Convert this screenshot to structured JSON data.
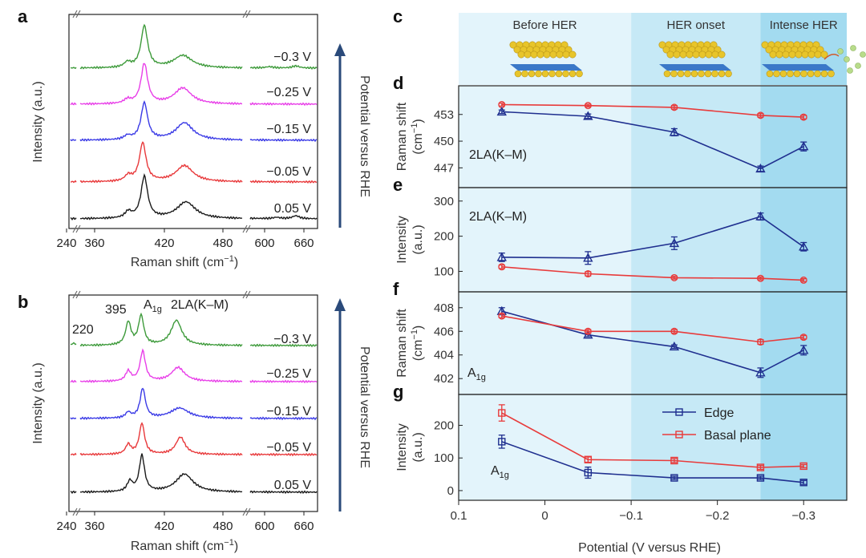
{
  "colors": {
    "black": "#1a1a1a",
    "red": "#e8383a",
    "blue": "#3a3ae6",
    "magenta": "#e83ee8",
    "green": "#3d9a3a",
    "edge": "#1f2f8f",
    "basal": "#e83b3b",
    "arrow": "#2a4a7a",
    "region1": "#e3f4fb",
    "region2": "#c6e9f6",
    "region3": "#a3dbf0"
  },
  "regions": {
    "labels": [
      "Before HER",
      "HER onset",
      "Intense HER"
    ],
    "bounds": [
      [
        0.1,
        -0.1
      ],
      [
        -0.1,
        -0.25
      ],
      [
        -0.25,
        -0.35
      ]
    ]
  },
  "spectra": {
    "panels": [
      {
        "label": "a",
        "potentials": [
          "−0.3 V",
          "−0.25 V",
          "−0.15 V",
          "−0.05 V",
          "0.05 V"
        ]
      },
      {
        "label": "b",
        "potentials": [
          "−0.3 V",
          "−0.25 V",
          "−0.15 V",
          "−0.05 V",
          "0.05 V"
        ],
        "peak_labels": [
          "220",
          "395",
          "A",
          "1g",
          "2LA(K–M)"
        ]
      }
    ],
    "ylabel": "Intensity (a.u.)",
    "xlabel": "Raman shift (cm",
    "xlabel_sup": "−1",
    "xlabel_end": ")",
    "ticks": [
      "240",
      "360",
      "420",
      "480",
      "600",
      "660"
    ],
    "arrow_label": "Potential versus RHE"
  },
  "chart_data": [
    {
      "type": "line",
      "panel": "d",
      "annotation": "2LA(K–M)",
      "ylabel": "Raman shift",
      "ylabel2": "(cm",
      "ylabel2_sup": "−1",
      "ylabel2_end": ")",
      "x": [
        0.05,
        -0.05,
        -0.15,
        -0.25,
        -0.3
      ],
      "ylim": [
        445.5,
        455.5
      ],
      "yticks": [
        447,
        450,
        453
      ],
      "series": [
        {
          "key": "basal",
          "marker": "circle",
          "values": [
            454.1,
            454.0,
            453.8,
            452.9,
            452.7
          ],
          "err": [
            0.15,
            0.15,
            0.2,
            0.2,
            0.2
          ]
        },
        {
          "key": "edge",
          "marker": "triangle",
          "values": [
            453.3,
            452.8,
            451.0,
            446.9,
            449.4
          ],
          "err": [
            0.2,
            0.25,
            0.4,
            0.3,
            0.5
          ]
        }
      ]
    },
    {
      "type": "line",
      "panel": "e",
      "annotation": "2LA(K–M)",
      "ylabel": "Intensity",
      "ylabel2": "(a.u.)",
      "x": [
        0.05,
        -0.05,
        -0.15,
        -0.25,
        -0.3
      ],
      "ylim": [
        60,
        320
      ],
      "yticks": [
        100,
        200,
        300
      ],
      "series": [
        {
          "key": "edge",
          "marker": "triangle",
          "values": [
            140,
            138,
            180,
            256,
            170
          ],
          "err": [
            12,
            18,
            18,
            10,
            12
          ]
        },
        {
          "key": "basal",
          "marker": "circle",
          "values": [
            113,
            93,
            82,
            80,
            75
          ],
          "err": [
            5,
            6,
            4,
            4,
            4
          ]
        }
      ]
    },
    {
      "type": "line",
      "panel": "f",
      "annotation": "A",
      "annotation_sub": "1g",
      "ylabel": "Raman shift",
      "ylabel2": "(cm",
      "ylabel2_sup": "−1",
      "ylabel2_end": ")",
      "x": [
        0.05,
        -0.05,
        -0.15,
        -0.25,
        -0.3
      ],
      "ylim": [
        401.2,
        408.8
      ],
      "yticks": [
        402,
        404,
        406,
        408
      ],
      "series": [
        {
          "key": "edge",
          "marker": "triangle",
          "values": [
            407.7,
            405.7,
            404.7,
            402.5,
            404.4
          ],
          "err": [
            0.3,
            0.15,
            0.15,
            0.4,
            0.4
          ]
        },
        {
          "key": "basal",
          "marker": "circle",
          "values": [
            407.3,
            406.0,
            406.0,
            405.1,
            405.5
          ],
          "err": [
            0.15,
            0.15,
            0.15,
            0.2,
            0.15
          ]
        }
      ]
    },
    {
      "type": "line",
      "panel": "g",
      "annotation": "A",
      "annotation_sub": "1g",
      "ylabel": "Intensity",
      "ylabel2": "(a.u.)",
      "xlabel": "Potential (V versus RHE)",
      "x": [
        0.05,
        -0.05,
        -0.15,
        -0.25,
        -0.3
      ],
      "xlim": [
        0.1,
        -0.35
      ],
      "xticks": [
        0.1,
        0,
        -0.1,
        -0.2,
        -0.3
      ],
      "xticklabels": [
        "0.1",
        "0",
        "−0.1",
        "−0.2",
        "−0.3"
      ],
      "ylim": [
        -10,
        275
      ],
      "yticks": [
        0,
        100,
        200
      ],
      "series": [
        {
          "key": "edge",
          "name": "Edge",
          "marker": "square",
          "values": [
            150,
            55,
            39,
            39,
            25
          ],
          "err": [
            20,
            17,
            5,
            5,
            6
          ]
        },
        {
          "key": "basal",
          "name": "Basal plane",
          "marker": "square",
          "values": [
            238,
            95,
            92,
            71,
            75
          ],
          "err": [
            25,
            8,
            6,
            6,
            5
          ]
        }
      ]
    }
  ]
}
